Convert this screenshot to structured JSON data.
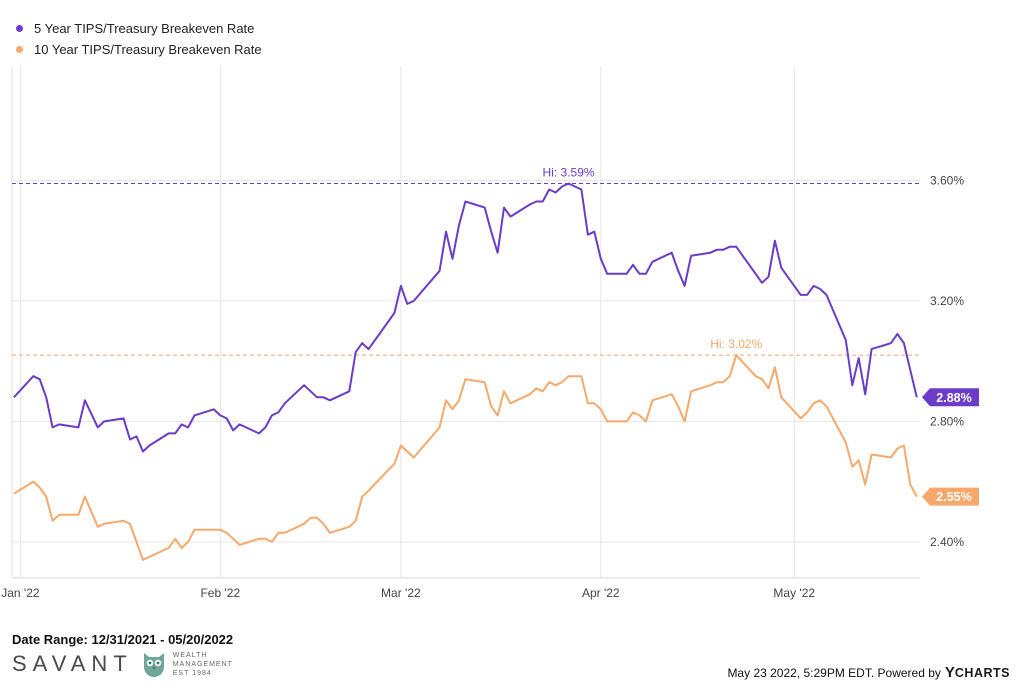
{
  "legend": {
    "series1": "5 Year TIPS/Treasury Breakeven Rate",
    "series2": "10 Year TIPS/Treasury Breakeven Rate"
  },
  "colors": {
    "series1": "#6a3cc8",
    "series2": "#f7a86a",
    "grid": "#e6e6e6",
    "axis": "#444444"
  },
  "chart_data": {
    "type": "line",
    "y_ticks": [
      "3.60%",
      "3.20%",
      "2.80%",
      "2.40%"
    ],
    "y_tick_values": [
      3.6,
      3.2,
      2.8,
      2.4
    ],
    "ylim": [
      2.28,
      3.98
    ],
    "x_ticks": [
      {
        "label": "Jan '22",
        "day": 1
      },
      {
        "label": "Feb '22",
        "day": 32
      },
      {
        "label": "Mar '22",
        "day": 60
      },
      {
        "label": "Apr '22",
        "day": 91
      },
      {
        "label": "May '22",
        "day": 121
      }
    ],
    "xlim": [
      -0.3,
      140.5
    ],
    "grid": true,
    "legend_position": "top-left",
    "date_range_start": "2021-12-31",
    "series": [
      {
        "name": "5 Year TIPS/Treasury Breakeven Rate",
        "end_label": "2.88%",
        "hi_label": "Hi: 3.59%",
        "hi_value": 3.59,
        "points": [
          [
            0,
            2.88
          ],
          [
            3,
            2.95
          ],
          [
            4,
            2.94
          ],
          [
            5,
            2.88
          ],
          [
            6,
            2.78
          ],
          [
            7,
            2.79
          ],
          [
            10,
            2.78
          ],
          [
            11,
            2.87
          ],
          [
            13,
            2.78
          ],
          [
            14,
            2.8
          ],
          [
            17,
            2.81
          ],
          [
            18,
            2.74
          ],
          [
            19,
            2.75
          ],
          [
            20,
            2.7
          ],
          [
            21,
            2.72
          ],
          [
            24,
            2.76
          ],
          [
            25,
            2.76
          ],
          [
            26,
            2.79
          ],
          [
            27,
            2.78
          ],
          [
            28,
            2.82
          ],
          [
            31,
            2.84
          ],
          [
            32,
            2.82
          ],
          [
            33,
            2.81
          ],
          [
            34,
            2.77
          ],
          [
            35,
            2.79
          ],
          [
            38,
            2.76
          ],
          [
            39,
            2.78
          ],
          [
            40,
            2.82
          ],
          [
            41,
            2.83
          ],
          [
            42,
            2.86
          ],
          [
            45,
            2.92
          ],
          [
            46,
            2.9
          ],
          [
            47,
            2.88
          ],
          [
            48,
            2.88
          ],
          [
            49,
            2.87
          ],
          [
            52,
            2.9
          ],
          [
            53,
            3.03
          ],
          [
            54,
            3.06
          ],
          [
            55,
            3.04
          ],
          [
            59,
            3.16
          ],
          [
            60,
            3.25
          ],
          [
            61,
            3.19
          ],
          [
            62,
            3.2
          ],
          [
            66,
            3.3
          ],
          [
            67,
            3.43
          ],
          [
            68,
            3.34
          ],
          [
            69,
            3.45
          ],
          [
            70,
            3.53
          ],
          [
            73,
            3.51
          ],
          [
            74,
            3.43
          ],
          [
            75,
            3.36
          ],
          [
            76,
            3.51
          ],
          [
            77,
            3.48
          ],
          [
            80,
            3.52
          ],
          [
            81,
            3.53
          ],
          [
            82,
            3.53
          ],
          [
            83,
            3.57
          ],
          [
            84,
            3.56
          ],
          [
            85,
            3.58
          ],
          [
            86,
            3.59
          ],
          [
            88,
            3.57
          ],
          [
            89,
            3.42
          ],
          [
            90,
            3.43
          ],
          [
            91,
            3.34
          ],
          [
            92,
            3.29
          ],
          [
            95,
            3.29
          ],
          [
            96,
            3.32
          ],
          [
            97,
            3.29
          ],
          [
            98,
            3.29
          ],
          [
            99,
            3.33
          ],
          [
            102,
            3.36
          ],
          [
            103,
            3.3
          ],
          [
            104,
            3.25
          ],
          [
            105,
            3.35
          ],
          [
            108,
            3.36
          ],
          [
            109,
            3.37
          ],
          [
            110,
            3.37
          ],
          [
            111,
            3.38
          ],
          [
            112,
            3.38
          ],
          [
            115,
            3.29
          ],
          [
            116,
            3.26
          ],
          [
            117,
            3.28
          ],
          [
            118,
            3.4
          ],
          [
            119,
            3.31
          ],
          [
            122,
            3.22
          ],
          [
            123,
            3.22
          ],
          [
            124,
            3.25
          ],
          [
            125,
            3.24
          ],
          [
            126,
            3.22
          ],
          [
            129,
            3.07
          ],
          [
            130,
            2.92
          ],
          [
            131,
            3.01
          ],
          [
            132,
            2.89
          ],
          [
            133,
            3.04
          ],
          [
            136,
            3.06
          ],
          [
            137,
            3.09
          ],
          [
            138,
            3.06
          ],
          [
            139,
            2.97
          ],
          [
            140,
            2.88
          ]
        ]
      },
      {
        "name": "10 Year TIPS/Treasury Breakeven Rate",
        "end_label": "2.55%",
        "hi_label": "Hi: 3.02%",
        "hi_value": 3.02,
        "points": [
          [
            0,
            2.56
          ],
          [
            3,
            2.6
          ],
          [
            4,
            2.58
          ],
          [
            5,
            2.55
          ],
          [
            6,
            2.47
          ],
          [
            7,
            2.49
          ],
          [
            10,
            2.49
          ],
          [
            11,
            2.55
          ],
          [
            13,
            2.45
          ],
          [
            14,
            2.46
          ],
          [
            17,
            2.47
          ],
          [
            18,
            2.46
          ],
          [
            19,
            2.4
          ],
          [
            20,
            2.34
          ],
          [
            21,
            2.35
          ],
          [
            24,
            2.38
          ],
          [
            25,
            2.41
          ],
          [
            26,
            2.38
          ],
          [
            27,
            2.4
          ],
          [
            28,
            2.44
          ],
          [
            31,
            2.44
          ],
          [
            32,
            2.44
          ],
          [
            33,
            2.43
          ],
          [
            34,
            2.41
          ],
          [
            35,
            2.39
          ],
          [
            38,
            2.41
          ],
          [
            39,
            2.41
          ],
          [
            40,
            2.4
          ],
          [
            41,
            2.43
          ],
          [
            42,
            2.43
          ],
          [
            45,
            2.46
          ],
          [
            46,
            2.48
          ],
          [
            47,
            2.48
          ],
          [
            48,
            2.46
          ],
          [
            49,
            2.43
          ],
          [
            52,
            2.45
          ],
          [
            53,
            2.47
          ],
          [
            54,
            2.55
          ],
          [
            55,
            2.57
          ],
          [
            59,
            2.66
          ],
          [
            60,
            2.72
          ],
          [
            61,
            2.7
          ],
          [
            62,
            2.68
          ],
          [
            66,
            2.78
          ],
          [
            67,
            2.87
          ],
          [
            68,
            2.84
          ],
          [
            69,
            2.87
          ],
          [
            70,
            2.94
          ],
          [
            73,
            2.93
          ],
          [
            74,
            2.85
          ],
          [
            75,
            2.82
          ],
          [
            76,
            2.9
          ],
          [
            77,
            2.86
          ],
          [
            80,
            2.89
          ],
          [
            81,
            2.91
          ],
          [
            82,
            2.9
          ],
          [
            83,
            2.93
          ],
          [
            84,
            2.92
          ],
          [
            85,
            2.93
          ],
          [
            86,
            2.95
          ],
          [
            88,
            2.95
          ],
          [
            89,
            2.86
          ],
          [
            90,
            2.86
          ],
          [
            91,
            2.84
          ],
          [
            92,
            2.8
          ],
          [
            95,
            2.8
          ],
          [
            96,
            2.83
          ],
          [
            97,
            2.82
          ],
          [
            98,
            2.8
          ],
          [
            99,
            2.87
          ],
          [
            102,
            2.89
          ],
          [
            103,
            2.85
          ],
          [
            104,
            2.8
          ],
          [
            105,
            2.9
          ],
          [
            108,
            2.92
          ],
          [
            109,
            2.93
          ],
          [
            110,
            2.93
          ],
          [
            111,
            2.95
          ],
          [
            112,
            3.02
          ],
          [
            115,
            2.95
          ],
          [
            116,
            2.94
          ],
          [
            117,
            2.91
          ],
          [
            118,
            2.98
          ],
          [
            119,
            2.88
          ],
          [
            122,
            2.81
          ],
          [
            123,
            2.83
          ],
          [
            124,
            2.86
          ],
          [
            125,
            2.87
          ],
          [
            126,
            2.85
          ],
          [
            129,
            2.73
          ],
          [
            130,
            2.65
          ],
          [
            131,
            2.67
          ],
          [
            132,
            2.59
          ],
          [
            133,
            2.69
          ],
          [
            136,
            2.68
          ],
          [
            137,
            2.71
          ],
          [
            138,
            2.72
          ],
          [
            139,
            2.59
          ],
          [
            140,
            2.55
          ]
        ]
      }
    ]
  },
  "footer": {
    "date_range": "Date Range: 12/31/2021 - 05/20/2022",
    "timestamp": "May 23 2022, 5:29PM EDT. Powered by",
    "ycharts_y": "Y",
    "ycharts_rest": "CHARTS"
  },
  "brand": {
    "name": "SAVANT",
    "sub_line1": "WEALTH",
    "sub_line2": "MANAGEMENT",
    "sub_line3": "EST 1984"
  }
}
